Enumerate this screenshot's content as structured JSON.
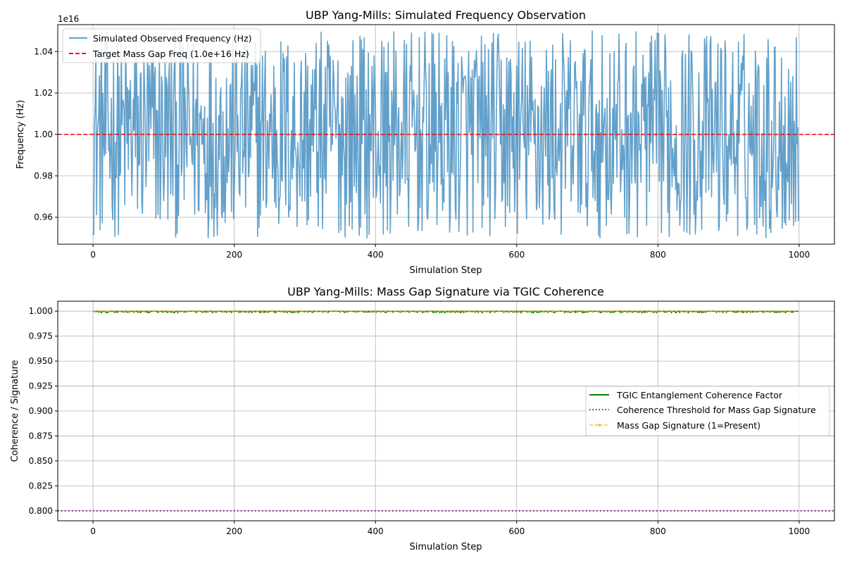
{
  "chart_data": [
    {
      "type": "line",
      "title": "UBP Yang-Mills: Simulated Frequency Observation",
      "xlabel": "Simulation Step",
      "ylabel": "Frequency (Hz)",
      "y_offset_text": "1e16",
      "xlim": [
        -50,
        1050
      ],
      "ylim": [
        9470000000000000.0,
        1.053e+16
      ],
      "xticks": [
        0,
        200,
        400,
        600,
        800,
        1000
      ],
      "xtick_labels": [
        "0",
        "200",
        "400",
        "600",
        "800",
        "1000"
      ],
      "yticks": [
        9600000000000000.0,
        9800000000000000.0,
        1e+16,
        1.02e+16,
        1.04e+16
      ],
      "ytick_labels": [
        "0.96",
        "0.98",
        "1.00",
        "1.02",
        "1.04"
      ],
      "grid": true,
      "legend_position": "upper-left",
      "series": [
        {
          "name": "Simulated Observed Frequency (Hz)",
          "color": "#1f77b4",
          "style": "solid",
          "n_points": 1000,
          "x_range": [
            0,
            999
          ],
          "distribution": "uniform",
          "y_range": [
            9500000000000000.0,
            1.05e+16
          ]
        },
        {
          "name": "Target Mass Gap Freq (1.0e+16 Hz)",
          "color": "#ff0000",
          "style": "dashed",
          "y": 1e+16
        }
      ]
    },
    {
      "type": "line",
      "title": "UBP Yang-Mills: Mass Gap Signature via TGIC Coherence",
      "xlabel": "Simulation Step",
      "ylabel": "Coherence / Signature",
      "xlim": [
        -50,
        1050
      ],
      "ylim": [
        0.79,
        1.01
      ],
      "xticks": [
        0,
        200,
        400,
        600,
        800,
        1000
      ],
      "xtick_labels": [
        "0",
        "200",
        "400",
        "600",
        "800",
        "1000"
      ],
      "yticks": [
        0.8,
        0.825,
        0.85,
        0.875,
        0.9,
        0.925,
        0.95,
        0.975,
        1.0
      ],
      "ytick_labels": [
        "0.800",
        "0.825",
        "0.850",
        "0.875",
        "0.900",
        "0.925",
        "0.950",
        "0.975",
        "1.000"
      ],
      "grid": true,
      "legend_position": "center-right",
      "series": [
        {
          "name": "TGIC Entanglement Coherence Factor",
          "color": "#008000",
          "style": "solid",
          "n_points": 1000,
          "x_range": [
            0,
            999
          ],
          "y_range": [
            0.9985,
            1.0
          ]
        },
        {
          "name": "Coherence Threshold for Mass Gap Signature",
          "color": "#800080",
          "style": "dotted",
          "y": 0.8
        },
        {
          "name": "Mass Gap Signature (1=Present)",
          "color": "#ffa500",
          "style": "dashed-marker",
          "n_points": 1000,
          "x_range": [
            0,
            999
          ],
          "y": 1.0
        }
      ]
    }
  ]
}
